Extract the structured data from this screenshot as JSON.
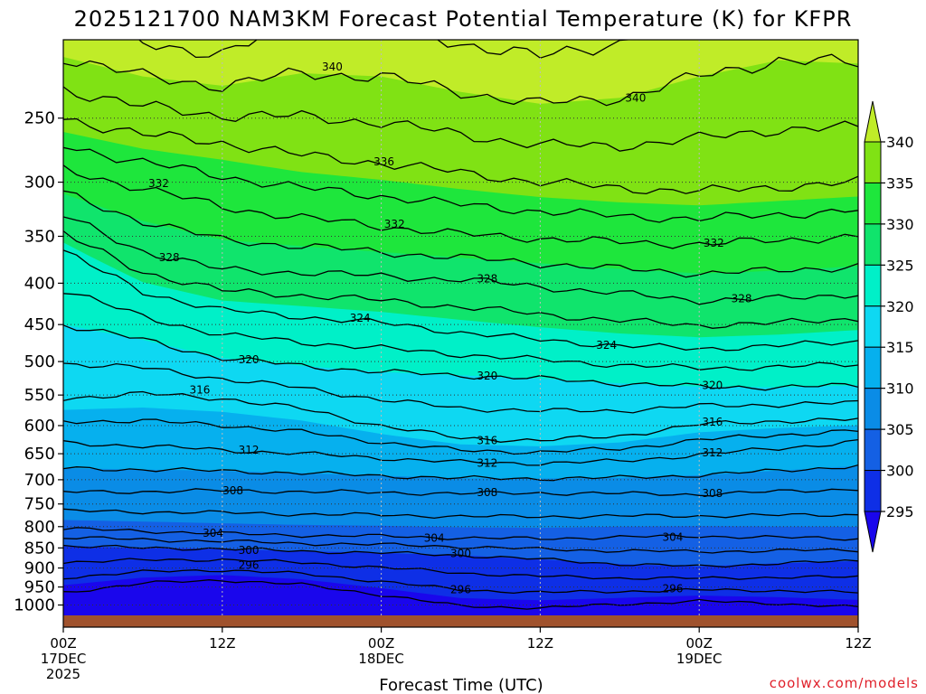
{
  "chart_data": {
    "type": "heatmap",
    "title": "2025121700 NAM3KM Forecast Potential Temperature (K) for KFPR",
    "xlabel": "Forecast Time (UTC)",
    "ylabel": "",
    "x_range_hours": [
      0,
      60
    ],
    "y_range_hpa": [
      200,
      1030
    ],
    "y_scale": "log-pressure",
    "grid": true,
    "y_ticks": [
      250,
      300,
      350,
      400,
      450,
      500,
      550,
      600,
      650,
      700,
      750,
      800,
      850,
      900,
      950,
      1000
    ],
    "x_ticks": [
      {
        "hour": 0,
        "line1": "00Z",
        "line2": "17DEC",
        "line3": "2025"
      },
      {
        "hour": 12,
        "line1": "12Z",
        "line2": "",
        "line3": ""
      },
      {
        "hour": 24,
        "line1": "00Z",
        "line2": "18DEC",
        "line3": ""
      },
      {
        "hour": 36,
        "line1": "12Z",
        "line2": "",
        "line3": ""
      },
      {
        "hour": 48,
        "line1": "00Z",
        "line2": "19DEC",
        "line3": ""
      },
      {
        "hour": 60,
        "line1": "12Z",
        "line2": "",
        "line3": ""
      }
    ],
    "colorbar": {
      "levels": [
        295,
        300,
        305,
        310,
        315,
        320,
        325,
        330,
        335,
        340
      ],
      "colors": [
        "#1a06ec",
        "#0e2fe6",
        "#1460e4",
        "#0a8ce6",
        "#06b0ee",
        "#0ed8f2",
        "#00f0c8",
        "#10e46c",
        "#1ee63c",
        "#80e214",
        "#c0ec28"
      ]
    },
    "isotherm_levels": [
      296,
      300,
      304,
      308,
      312,
      316,
      320,
      324,
      328,
      332,
      336,
      340
    ],
    "contour_labels": [
      {
        "value": "340",
        "hour": 20.3,
        "hpa": 216
      },
      {
        "value": "340",
        "hour": 43.2,
        "hpa": 236
      },
      {
        "value": "336",
        "hour": 24.2,
        "hpa": 283
      },
      {
        "value": "332",
        "hour": 7.2,
        "hpa": 301
      },
      {
        "value": "332",
        "hour": 25.0,
        "hpa": 338
      },
      {
        "value": "332",
        "hour": 49.1,
        "hpa": 357
      },
      {
        "value": "328",
        "hour": 8.0,
        "hpa": 372
      },
      {
        "value": "328",
        "hour": 32.0,
        "hpa": 395
      },
      {
        "value": "328",
        "hour": 51.2,
        "hpa": 418
      },
      {
        "value": "324",
        "hour": 22.4,
        "hpa": 442
      },
      {
        "value": "324",
        "hour": 41.0,
        "hpa": 477
      },
      {
        "value": "320",
        "hour": 14.0,
        "hpa": 497
      },
      {
        "value": "320",
        "hour": 32.0,
        "hpa": 521
      },
      {
        "value": "320",
        "hour": 49.0,
        "hpa": 535
      },
      {
        "value": "316",
        "hour": 10.3,
        "hpa": 542
      },
      {
        "value": "316",
        "hour": 32.0,
        "hpa": 626
      },
      {
        "value": "316",
        "hour": 49.0,
        "hpa": 594
      },
      {
        "value": "312",
        "hour": 14.0,
        "hpa": 643
      },
      {
        "value": "312",
        "hour": 32.0,
        "hpa": 668
      },
      {
        "value": "312",
        "hour": 49.0,
        "hpa": 648
      },
      {
        "value": "308",
        "hour": 12.8,
        "hpa": 722
      },
      {
        "value": "308",
        "hour": 32.0,
        "hpa": 726
      },
      {
        "value": "308",
        "hour": 49.0,
        "hpa": 728
      },
      {
        "value": "304",
        "hour": 11.3,
        "hpa": 815
      },
      {
        "value": "304",
        "hour": 28.0,
        "hpa": 827
      },
      {
        "value": "304",
        "hour": 46.0,
        "hpa": 824
      },
      {
        "value": "300",
        "hour": 14.0,
        "hpa": 856
      },
      {
        "value": "300",
        "hour": 30.0,
        "hpa": 864
      },
      {
        "value": "296",
        "hour": 14.0,
        "hpa": 893
      },
      {
        "value": "296",
        "hour": 30.0,
        "hpa": 957
      },
      {
        "value": "296",
        "hour": 46.0,
        "hpa": 955
      }
    ],
    "isotherm_profiles": [
      {
        "value": 296,
        "points": [
          [
            0,
            925
          ],
          [
            6,
            910
          ],
          [
            12,
            905
          ],
          [
            18,
            915
          ],
          [
            24,
            935
          ],
          [
            30,
            958
          ],
          [
            36,
            965
          ],
          [
            42,
            962
          ],
          [
            48,
            958
          ],
          [
            54,
            960
          ],
          [
            60,
            965
          ]
        ]
      },
      {
        "value": 300,
        "points": [
          [
            0,
            845
          ],
          [
            6,
            850
          ],
          [
            12,
            852
          ],
          [
            18,
            858
          ],
          [
            24,
            862
          ],
          [
            30,
            868
          ],
          [
            36,
            878
          ],
          [
            42,
            890
          ],
          [
            48,
            896
          ],
          [
            54,
            888
          ],
          [
            60,
            882
          ]
        ]
      },
      {
        "value": 304,
        "points": [
          [
            0,
            805
          ],
          [
            6,
            810
          ],
          [
            12,
            816
          ],
          [
            18,
            820
          ],
          [
            24,
            822
          ],
          [
            30,
            826
          ],
          [
            36,
            828
          ],
          [
            42,
            824
          ],
          [
            48,
            822
          ],
          [
            54,
            825
          ],
          [
            60,
            828
          ]
        ]
      },
      {
        "value": 308,
        "points": [
          [
            0,
            725
          ],
          [
            6,
            724
          ],
          [
            12,
            722
          ],
          [
            18,
            724
          ],
          [
            24,
            726
          ],
          [
            30,
            728
          ],
          [
            36,
            727
          ],
          [
            42,
            728
          ],
          [
            48,
            730
          ],
          [
            54,
            724
          ],
          [
            60,
            718
          ]
        ]
      },
      {
        "value": 312,
        "points": [
          [
            0,
            630
          ],
          [
            6,
            636
          ],
          [
            12,
            643
          ],
          [
            18,
            650
          ],
          [
            24,
            658
          ],
          [
            30,
            666
          ],
          [
            36,
            668
          ],
          [
            42,
            664
          ],
          [
            48,
            652
          ],
          [
            54,
            640
          ],
          [
            60,
            628
          ]
        ]
      },
      {
        "value": 316,
        "points": [
          [
            0,
            555
          ],
          [
            6,
            548
          ],
          [
            12,
            555
          ],
          [
            18,
            572
          ],
          [
            24,
            600
          ],
          [
            30,
            622
          ],
          [
            36,
            626
          ],
          [
            42,
            618
          ],
          [
            48,
            598
          ],
          [
            54,
            592
          ],
          [
            60,
            590
          ]
        ]
      },
      {
        "value": 320,
        "points": [
          [
            0,
            450
          ],
          [
            6,
            470
          ],
          [
            12,
            495
          ],
          [
            18,
            506
          ],
          [
            24,
            515
          ],
          [
            30,
            520
          ],
          [
            36,
            525
          ],
          [
            42,
            532
          ],
          [
            48,
            537
          ],
          [
            54,
            538
          ],
          [
            60,
            535
          ]
        ]
      },
      {
        "value": 324,
        "points": [
          [
            0,
            365
          ],
          [
            6,
            410
          ],
          [
            12,
            432
          ],
          [
            18,
            440
          ],
          [
            24,
            448
          ],
          [
            30,
            460
          ],
          [
            36,
            470
          ],
          [
            42,
            478
          ],
          [
            48,
            482
          ],
          [
            54,
            478
          ],
          [
            60,
            472
          ]
        ]
      },
      {
        "value": 328,
        "points": [
          [
            0,
            330
          ],
          [
            6,
            365
          ],
          [
            12,
            385
          ],
          [
            18,
            388
          ],
          [
            24,
            392
          ],
          [
            30,
            396
          ],
          [
            36,
            404
          ],
          [
            42,
            412
          ],
          [
            48,
            420
          ],
          [
            54,
            418
          ],
          [
            60,
            412
          ]
        ]
      },
      {
        "value": 332,
        "points": [
          [
            0,
            290
          ],
          [
            6,
            305
          ],
          [
            12,
            322
          ],
          [
            18,
            332
          ],
          [
            24,
            340
          ],
          [
            30,
            348
          ],
          [
            36,
            352
          ],
          [
            42,
            356
          ],
          [
            48,
            358
          ],
          [
            54,
            354
          ],
          [
            60,
            350
          ]
        ]
      },
      {
        "value": 336,
        "points": [
          [
            0,
            250
          ],
          [
            6,
            262
          ],
          [
            12,
            268
          ],
          [
            18,
            278
          ],
          [
            24,
            284
          ],
          [
            30,
            292
          ],
          [
            36,
            300
          ],
          [
            42,
            305
          ],
          [
            48,
            308
          ],
          [
            54,
            304
          ],
          [
            60,
            300
          ]
        ]
      },
      {
        "value": 340,
        "points": [
          [
            0,
            210
          ],
          [
            6,
            222
          ],
          [
            12,
            228
          ],
          [
            18,
            220
          ],
          [
            24,
            222
          ],
          [
            30,
            232
          ],
          [
            36,
            240
          ],
          [
            42,
            236
          ],
          [
            48,
            222
          ],
          [
            54,
            212
          ],
          [
            60,
            214
          ]
        ]
      }
    ]
  },
  "credit": "coolwx.com/models"
}
